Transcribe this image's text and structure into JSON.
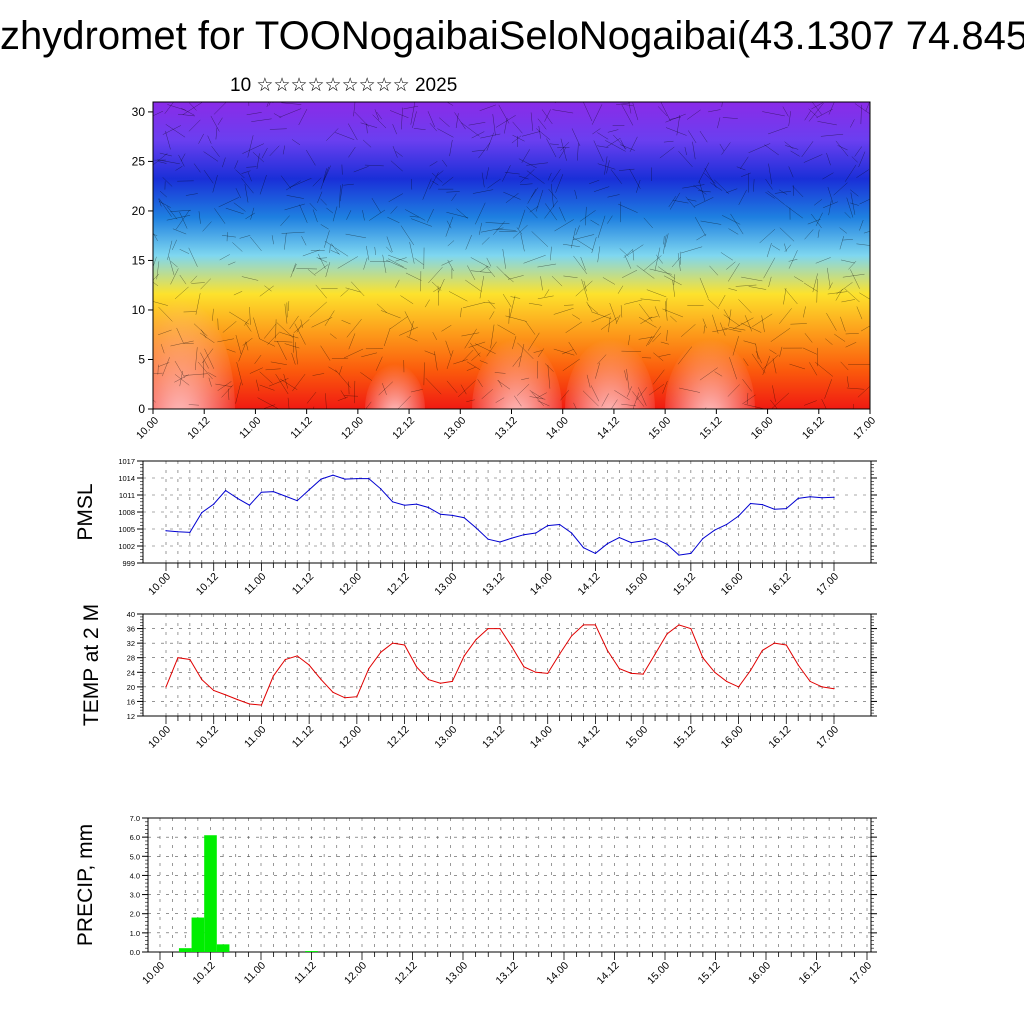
{
  "title": "zhydromet for TOONogaibaiSeloNogaibai(43.1307 74.845",
  "subtitle": "10 ☆☆☆☆☆☆☆☆☆ 2025",
  "chart_data": [
    {
      "type": "heatmap",
      "ylim": [
        0,
        31
      ],
      "yticks": [
        0,
        5,
        10,
        15,
        20,
        25,
        30
      ],
      "xticks": [
        "10.00",
        "10.12",
        "11.00",
        "11.12",
        "12.00",
        "12.12",
        "13.00",
        "13.12",
        "14.00",
        "14.12",
        "15.00",
        "15.12",
        "16.00",
        "16.12",
        "17.00"
      ],
      "colors": [
        "#f01a12",
        "#fb5a0c",
        "#fd9d1b",
        "#fde22d",
        "#7fd7f0",
        "#1e7fe0",
        "#1a2fd8",
        "#6a3ff0",
        "#8a2be8"
      ]
    },
    {
      "type": "line",
      "ylabel": "PMSL",
      "ylim": [
        999,
        1017
      ],
      "yticks": [
        999,
        1002,
        1005,
        1008,
        1011,
        1014,
        1017
      ],
      "color": "#0000d0",
      "xticks": [
        "10.00",
        "10.12",
        "11.00",
        "11.12",
        "12.00",
        "12.12",
        "13.00",
        "13.12",
        "14.00",
        "14.12",
        "15.00",
        "15.12",
        "16.00",
        "16.12",
        "17.00"
      ],
      "values": [
        1004.7,
        1004.5,
        1004.4,
        1007.9,
        1009.4,
        1011.8,
        1010.4,
        1009.2,
        1011.5,
        1011.6,
        1010.8,
        1010.0,
        1011.9,
        1013.8,
        1014.5,
        1013.8,
        1013.9,
        1013.9,
        1012.1,
        1009.8,
        1009.2,
        1009.4,
        1008.8,
        1007.6,
        1007.4,
        1007.0,
        1005.2,
        1003.2,
        1002.7,
        1003.4,
        1004.0,
        1004.3,
        1005.6,
        1005.8,
        1004.3,
        1001.7,
        1000.7,
        1002.4,
        1003.5,
        1002.6,
        1002.9,
        1003.3,
        1002.3,
        1000.4,
        1000.7,
        1003.3,
        1004.8,
        1005.8,
        1007.3,
        1009.5,
        1009.3,
        1008.5,
        1008.6,
        1010.4,
        1010.7,
        1010.5,
        1010.6
      ]
    },
    {
      "type": "line",
      "ylabel": "TEMP at 2 M",
      "ylim": [
        12,
        40
      ],
      "yticks": [
        12,
        16,
        20,
        24,
        28,
        32,
        36,
        40
      ],
      "color": "#e00000",
      "xticks": [
        "10.00",
        "10.12",
        "11.00",
        "11.12",
        "12.00",
        "12.12",
        "13.00",
        "13.12",
        "14.00",
        "14.12",
        "15.00",
        "15.12",
        "16.00",
        "16.12",
        "17.00"
      ],
      "values": [
        20,
        28,
        27.5,
        22,
        19,
        17.8,
        16.5,
        15.3,
        15,
        23,
        27.5,
        28.5,
        26,
        22,
        18.5,
        17,
        17.3,
        25,
        29.5,
        32,
        31.5,
        25.5,
        22,
        21,
        21.5,
        28.5,
        33,
        36,
        36,
        31,
        25.5,
        24,
        23.7,
        29,
        34,
        37,
        37,
        30,
        25,
        23.7,
        23.5,
        29,
        34.5,
        37,
        36,
        28,
        24,
        21.5,
        20,
        24.5,
        30,
        32,
        31.5,
        26,
        21.5,
        20,
        19.5
      ]
    },
    {
      "type": "bar",
      "ylabel": "PRECIP, mm",
      "ylim": [
        0,
        7
      ],
      "yticks": [
        "0.0",
        "1.0",
        "2.0",
        "3.0",
        "4.0",
        "5.0",
        "6.0",
        "7.0"
      ],
      "color": "#00ee00",
      "xticks": [
        "10.00",
        "10.12",
        "11.00",
        "11.12",
        "12.00",
        "12.12",
        "13.00",
        "13.12",
        "14.00",
        "14.12",
        "15.00",
        "15.12",
        "16.00",
        "16.12",
        "17.00"
      ],
      "values": [
        0,
        0,
        0.2,
        1.8,
        6.1,
        0.4,
        0,
        0,
        0,
        0,
        0,
        0,
        0.05,
        0,
        0,
        0,
        0,
        0,
        0,
        0,
        0,
        0,
        0,
        0,
        0,
        0,
        0,
        0,
        0,
        0,
        0,
        0,
        0,
        0,
        0,
        0,
        0,
        0,
        0,
        0,
        0,
        0,
        0,
        0,
        0,
        0,
        0,
        0,
        0,
        0,
        0,
        0,
        0,
        0,
        0,
        0,
        0
      ]
    }
  ]
}
